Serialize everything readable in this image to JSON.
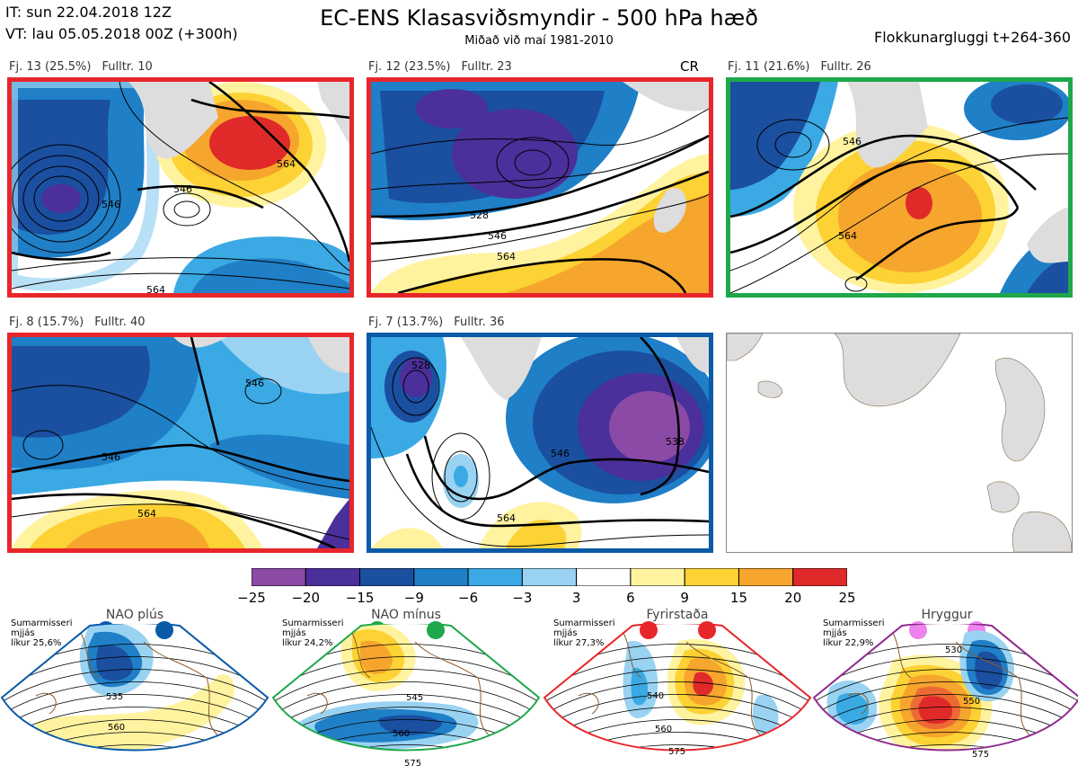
{
  "header": {
    "it": "IT: sun 22.04.2018 12Z",
    "vt": "VT: lau 05.05.2018 00Z  (+300h)",
    "title": "EC-ENS Klasasviðsmyndir - 500 hPa hæð",
    "subtitle": "Miðað við maí 1981-2010",
    "window": "Flokkunargluggi t+264-360"
  },
  "panels": [
    {
      "fj": "Fj. 13 (25.5%)",
      "fulltr": "Fulltr. 10",
      "border": "#e8262a"
    },
    {
      "fj": "Fj. 12 (23.5%)",
      "fulltr": "Fulltr. 23",
      "border": "#e8262a",
      "tag": "CR"
    },
    {
      "fj": "Fj. 11 (21.6%)",
      "fulltr": "Fulltr. 26",
      "border": "#1fa84b"
    },
    {
      "fj": "Fj. 8 (15.7%)",
      "fulltr": "Fulltr. 40",
      "border": "#e8262a"
    },
    {
      "fj": "Fj. 7 (13.7%)",
      "fulltr": "Fulltr. 36",
      "border": "#0a5aa8"
    }
  ],
  "contours": {
    "c528": "528",
    "c546": "546",
    "c564": "564",
    "c538": "538"
  },
  "colorbar": {
    "ticks": [
      "−25",
      "−20",
      "−15",
      "−9",
      "−6",
      "−3",
      "3",
      "6",
      "9",
      "15",
      "20",
      "25"
    ],
    "colors": [
      "#8a4aa6",
      "#4b2f9a",
      "#1b4fa0",
      "#1f7fc7",
      "#3aa9e4",
      "#9ad3f2",
      "#ffffff",
      "#fff3a0",
      "#fcd234",
      "#f6a52d",
      "#ee6a33",
      "#e02a2a"
    ]
  },
  "regimes": [
    {
      "name": "NAO plús",
      "line1": "Sumarmisseri",
      "line2": "mjjás",
      "line3": "líkur 25,6%",
      "color": "#0a5aa8",
      "labels": [
        "535",
        "560"
      ]
    },
    {
      "name": "NAO mínus",
      "line1": "Sumarmisseri",
      "line2": "mjjás",
      "line3": "líkur 24,2%",
      "color": "#1fa84b",
      "labels": [
        "545",
        "560",
        "575"
      ]
    },
    {
      "name": "Fyrirstaða",
      "line1": "Sumarmisseri",
      "line2": "mjjás",
      "line3": "líkur 27,3%",
      "color": "#e8262a",
      "labels": [
        "540",
        "560",
        "575"
      ]
    },
    {
      "name": "Hryggur",
      "line1": "Sumarmisseri",
      "line2": "mjjás",
      "line3": "líkur 22,9%",
      "color": "#8e2a8e",
      "dot": "#ee82ee",
      "labels": [
        "530",
        "550",
        "575"
      ]
    }
  ]
}
